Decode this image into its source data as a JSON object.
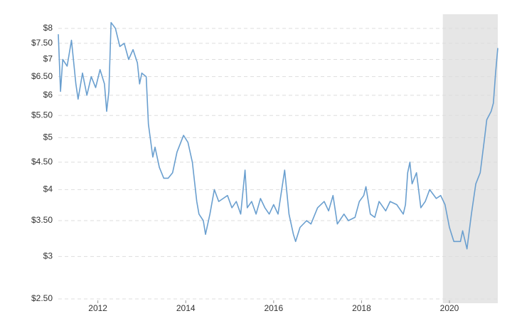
{
  "chart_data": {
    "type": "line",
    "x": [
      2011.1,
      2011.15,
      2011.2,
      2011.3,
      2011.4,
      2011.5,
      2011.55,
      2011.65,
      2011.75,
      2011.85,
      2011.95,
      2012.05,
      2012.15,
      2012.2,
      2012.25,
      2012.3,
      2012.4,
      2012.5,
      2012.6,
      2012.7,
      2012.8,
      2012.9,
      2012.95,
      2013.0,
      2013.1,
      2013.15,
      2013.25,
      2013.3,
      2013.4,
      2013.5,
      2013.6,
      2013.7,
      2013.8,
      2013.95,
      2014.05,
      2014.15,
      2014.25,
      2014.3,
      2014.4,
      2014.45,
      2014.55,
      2014.65,
      2014.75,
      2014.85,
      2014.95,
      2015.05,
      2015.15,
      2015.25,
      2015.35,
      2015.4,
      2015.5,
      2015.6,
      2015.7,
      2015.8,
      2015.9,
      2016.0,
      2016.1,
      2016.25,
      2016.35,
      2016.45,
      2016.5,
      2016.6,
      2016.75,
      2016.85,
      2017.0,
      2017.15,
      2017.25,
      2017.35,
      2017.45,
      2017.6,
      2017.7,
      2017.85,
      2017.95,
      2018.05,
      2018.1,
      2018.2,
      2018.3,
      2018.4,
      2018.55,
      2018.65,
      2018.8,
      2018.95,
      2019.0,
      2019.05,
      2019.1,
      2019.15,
      2019.25,
      2019.35,
      2019.45,
      2019.55,
      2019.7,
      2019.8,
      2019.9,
      2020.0,
      2020.1,
      2020.25,
      2020.3,
      2020.4,
      2020.5,
      2020.6,
      2020.7,
      2020.8,
      2020.85,
      2020.95,
      2021.0,
      2021.05,
      2021.1
    ],
    "series": [
      {
        "color": "#6a9fcf",
        "values": [
          7.8,
          6.1,
          7.0,
          6.8,
          7.6,
          6.3,
          5.9,
          6.6,
          6.0,
          6.5,
          6.2,
          6.7,
          6.3,
          5.6,
          6.1,
          8.2,
          8.0,
          7.4,
          7.5,
          7.0,
          7.3,
          6.9,
          6.3,
          6.6,
          6.5,
          5.3,
          4.6,
          4.8,
          4.4,
          4.2,
          4.2,
          4.3,
          4.7,
          5.05,
          4.9,
          4.5,
          3.8,
          3.6,
          3.5,
          3.3,
          3.6,
          4.0,
          3.8,
          3.85,
          3.9,
          3.7,
          3.8,
          3.6,
          4.35,
          3.7,
          3.8,
          3.6,
          3.85,
          3.7,
          3.6,
          3.75,
          3.6,
          4.35,
          3.6,
          3.3,
          3.2,
          3.4,
          3.5,
          3.45,
          3.7,
          3.8,
          3.65,
          3.9,
          3.45,
          3.6,
          3.5,
          3.55,
          3.8,
          3.9,
          4.05,
          3.6,
          3.55,
          3.8,
          3.65,
          3.8,
          3.75,
          3.6,
          3.75,
          4.3,
          4.5,
          4.1,
          4.3,
          3.7,
          3.8,
          4.0,
          3.85,
          3.9,
          3.75,
          3.4,
          3.2,
          3.2,
          3.35,
          3.1,
          3.6,
          4.1,
          4.3,
          5.0,
          5.4,
          5.6,
          5.8,
          6.6,
          7.35
        ]
      }
    ],
    "xlim": [
      2011.1,
      2021.1
    ],
    "xticks": [
      2012,
      2014,
      2016,
      2018,
      2020
    ],
    "ylim": [
      2.5,
      8.5
    ],
    "log_scale": true,
    "grid": true,
    "yticks": [
      {
        "value": 2.5,
        "label": "$2.50"
      },
      {
        "value": 3,
        "label": "$3"
      },
      {
        "value": 3.5,
        "label": "$3.50"
      },
      {
        "value": 4,
        "label": "$4"
      },
      {
        "value": 4.5,
        "label": "$4.50"
      },
      {
        "value": 5,
        "label": "$5"
      },
      {
        "value": 5.5,
        "label": "$5.50"
      },
      {
        "value": 6,
        "label": "$6"
      },
      {
        "value": 6.5,
        "label": "$6.50"
      },
      {
        "value": 7,
        "label": "$7"
      },
      {
        "value": 7.5,
        "label": "$7.50"
      },
      {
        "value": 8,
        "label": "$8"
      }
    ],
    "shaded_range": [
      2019.85,
      2021.1
    ],
    "shade_color": "#e6e6e6"
  }
}
